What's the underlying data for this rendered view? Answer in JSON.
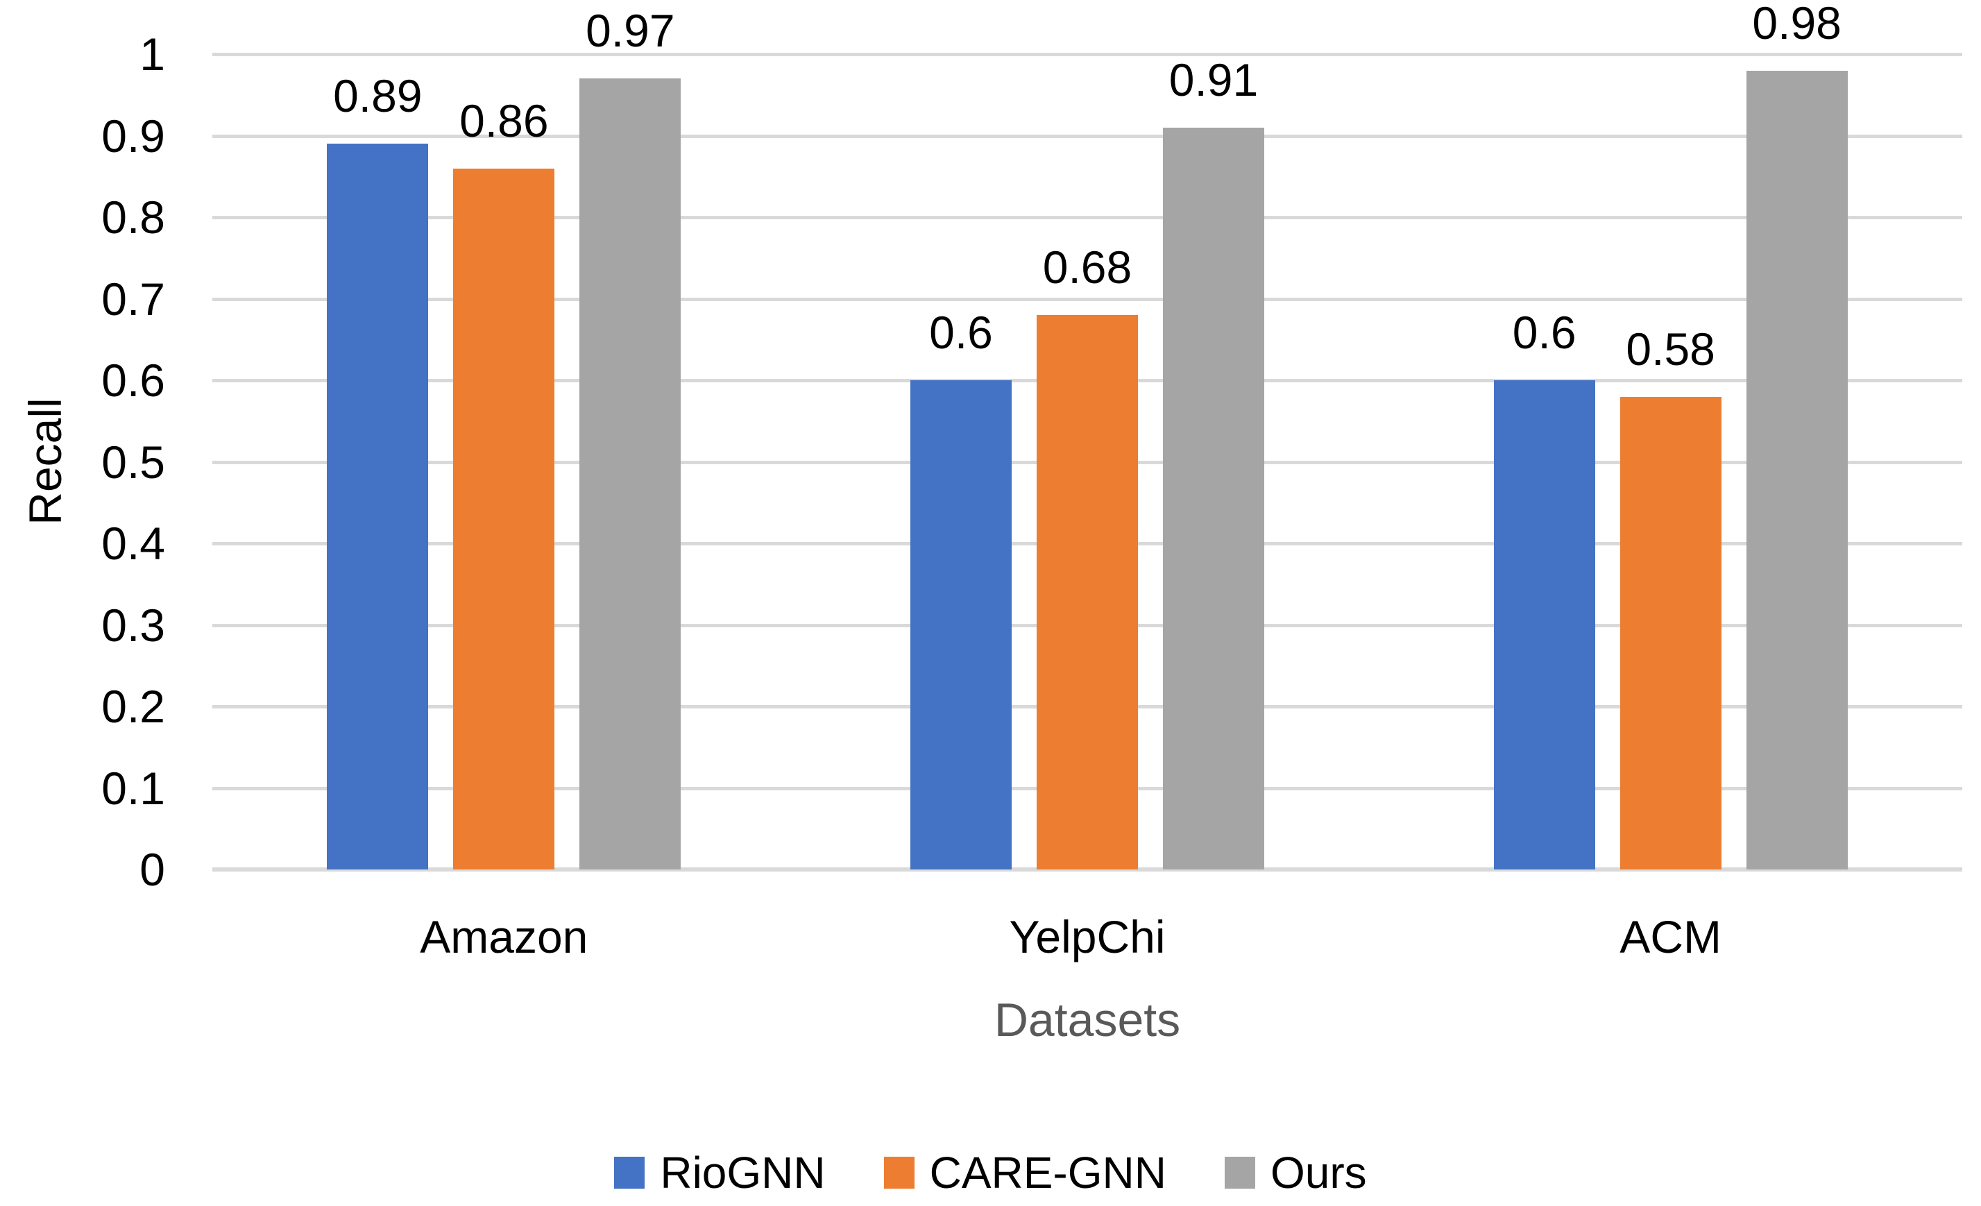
{
  "chart_data": {
    "type": "bar",
    "title": "",
    "categories": [
      "Amazon",
      "YelpChi",
      "ACM"
    ],
    "series": [
      {
        "name": "RioGNN",
        "color": "#4472C4",
        "values": [
          0.89,
          0.6,
          0.6
        ],
        "labels": [
          "0.89",
          "0.6",
          "0.6"
        ]
      },
      {
        "name": "CARE-GNN",
        "color": "#ED7D31",
        "values": [
          0.86,
          0.68,
          0.58
        ],
        "labels": [
          "0.86",
          "0.68",
          "0.58"
        ]
      },
      {
        "name": "Ours",
        "color": "#A5A5A5",
        "values": [
          0.97,
          0.91,
          0.98
        ],
        "labels": [
          "0.97",
          "0.91",
          "0.98"
        ]
      }
    ],
    "xlabel": "Datasets",
    "ylabel": "Recall",
    "ylim": [
      0,
      1
    ],
    "yticks": [
      0,
      0.1,
      0.2,
      0.3,
      0.4,
      0.5,
      0.6,
      0.7,
      0.8,
      0.9,
      1
    ],
    "ytick_labels": [
      "0",
      "0.1",
      "0.2",
      "0.3",
      "0.4",
      "0.5",
      "0.6",
      "0.7",
      "0.8",
      "0.9",
      "1"
    ],
    "grid": "horizontal",
    "legend_position": "bottom"
  },
  "colors": {
    "gridline": "#D9D9D9",
    "axis_line": "#D9D9D9",
    "xlabel_color": "#595959",
    "text": "#000000",
    "background": "#ffffff"
  }
}
